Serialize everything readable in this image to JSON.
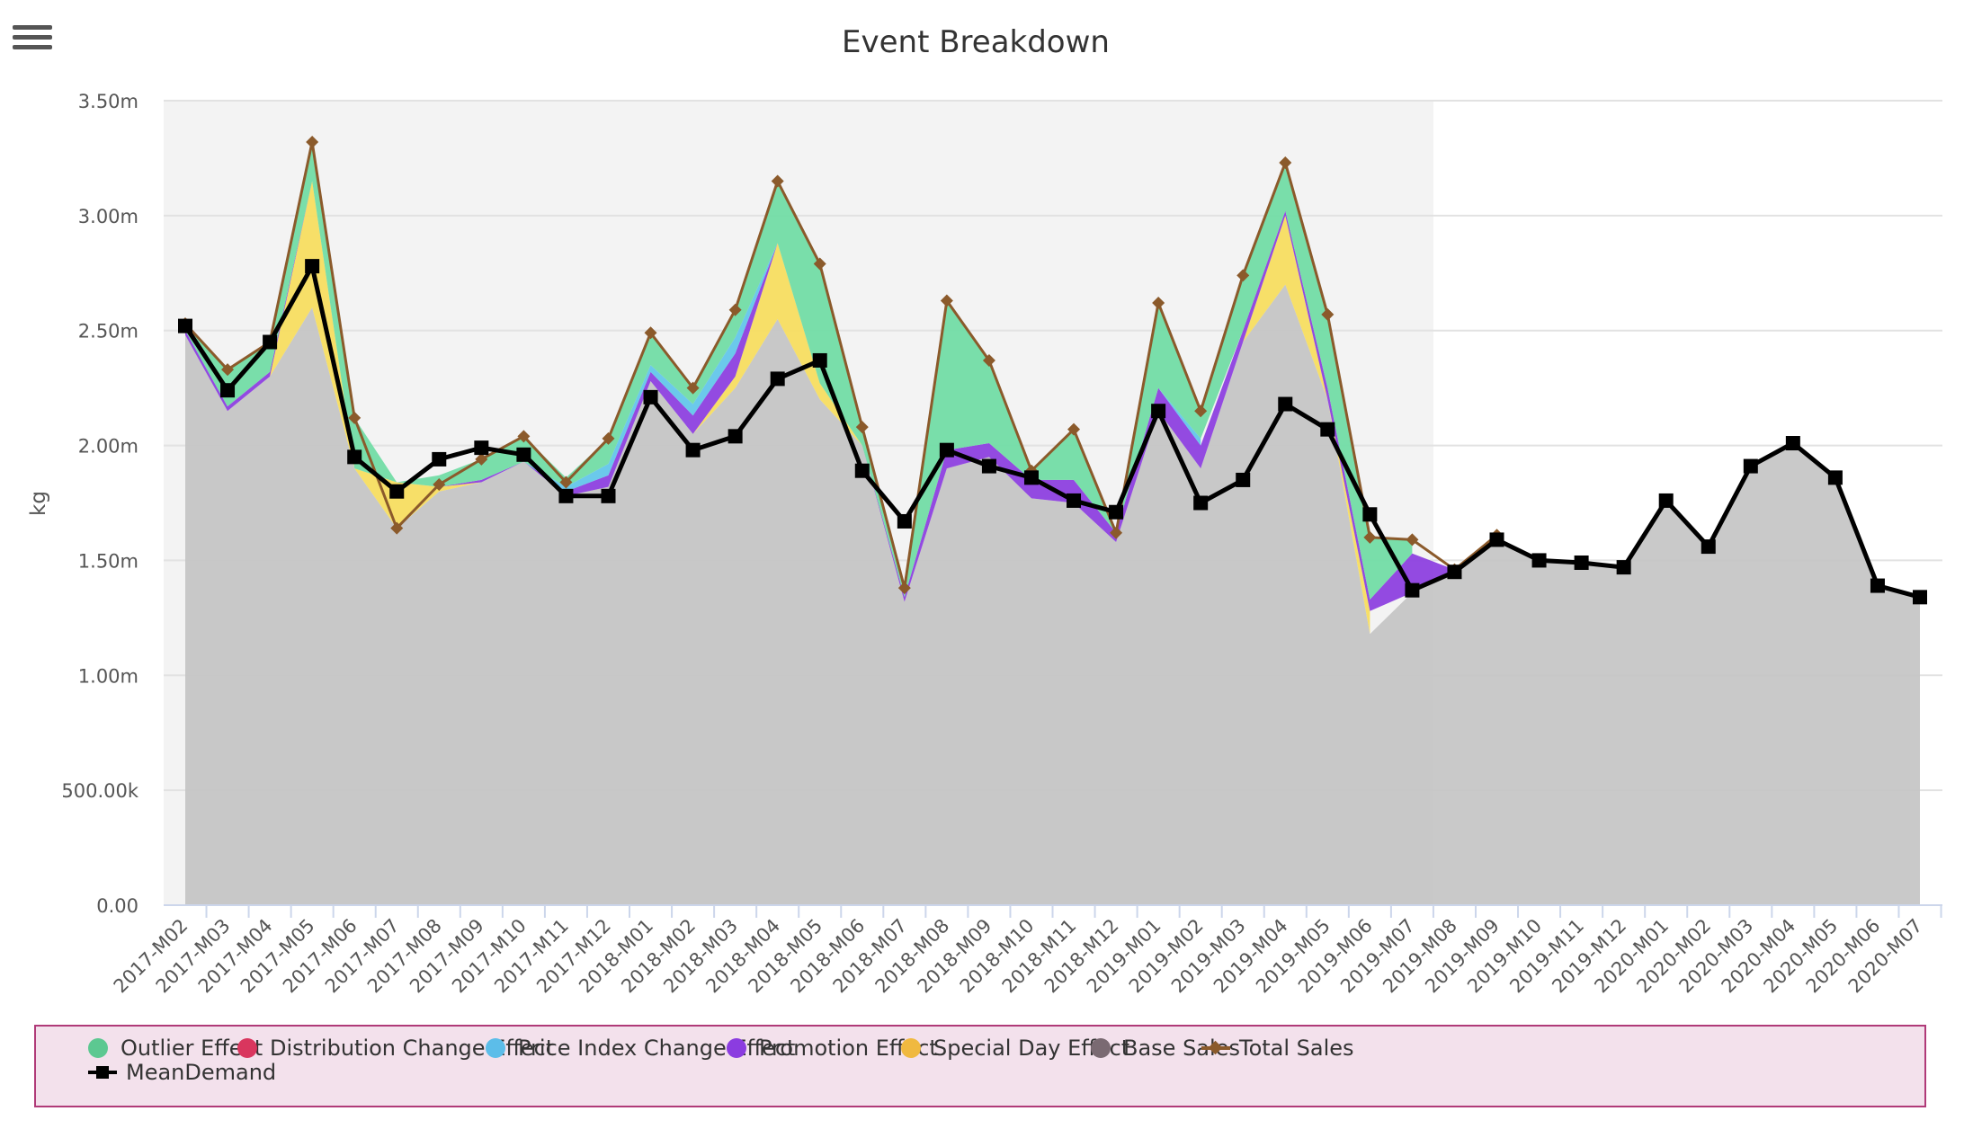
{
  "chart_data": {
    "type": "area",
    "title": "Event Breakdown",
    "ylabel": "kg",
    "ylim": [
      0,
      3500000
    ],
    "y_ticks": [
      "0.00",
      "500.00k",
      "1.00m",
      "1.50m",
      "2.00m",
      "2.50m",
      "3.00m",
      "3.50m"
    ],
    "grid": true,
    "shaded_history_end": "2019-M07",
    "categories": [
      "2017-M02",
      "2017-M03",
      "2017-M04",
      "2017-M05",
      "2017-M06",
      "2017-M07",
      "2017-M08",
      "2017-M09",
      "2017-M10",
      "2017-M11",
      "2017-M12",
      "2018-M01",
      "2018-M02",
      "2018-M03",
      "2018-M04",
      "2018-M05",
      "2018-M06",
      "2018-M07",
      "2018-M08",
      "2018-M09",
      "2018-M10",
      "2018-M11",
      "2018-M12",
      "2019-M01",
      "2019-M02",
      "2019-M03",
      "2019-M04",
      "2019-M05",
      "2019-M06",
      "2019-M07",
      "2019-M08",
      "2019-M09",
      "2019-M10",
      "2019-M11",
      "2019-M12",
      "2020-M01",
      "2020-M02",
      "2020-M03",
      "2020-M04",
      "2020-M05",
      "2020-M06",
      "2020-M07"
    ],
    "series": [
      {
        "name": "Base Sales",
        "kind": "area",
        "color": "#c4c4c4",
        "values": [
          2480000,
          2150000,
          2300000,
          2600000,
          1900000,
          1640000,
          1800000,
          1840000,
          1930000,
          1780000,
          1820000,
          2280000,
          2050000,
          2250000,
          2550000,
          2200000,
          2000000,
          1320000,
          1900000,
          1950000,
          1770000,
          1750000,
          1580000,
          2150000,
          1900000,
          2450000,
          2700000,
          2200000,
          1180000,
          1360000,
          1450000,
          1580000,
          1510000,
          1490000,
          1470000,
          1760000,
          1560000,
          1910000,
          2010000,
          1860000,
          1390000,
          1340000
        ]
      },
      {
        "name": "Special Day Effect",
        "kind": "area",
        "color": "#f7dd5c",
        "values": [
          0,
          0,
          0,
          550000,
          0,
          200000,
          20000,
          0,
          0,
          0,
          0,
          0,
          0,
          50000,
          330000,
          70000,
          0,
          0,
          0,
          0,
          0,
          0,
          0,
          0,
          0,
          0,
          300000,
          0,
          100000,
          0,
          0,
          0,
          0,
          0,
          0,
          0,
          0,
          0,
          0,
          0,
          0,
          0
        ]
      },
      {
        "name": "Promotion Effect",
        "kind": "area",
        "color": "#8b3ce0",
        "values": [
          20000,
          20000,
          20000,
          0,
          0,
          0,
          0,
          10000,
          0,
          20000,
          50000,
          40000,
          80000,
          100000,
          0,
          0,
          0,
          20000,
          80000,
          60000,
          80000,
          100000,
          40000,
          100000,
          100000,
          50000,
          20000,
          50000,
          50000,
          170000,
          10000,
          30000,
          0,
          0,
          0,
          0,
          0,
          0,
          0,
          0,
          0,
          0
        ]
      },
      {
        "name": "Price Index Change Effect",
        "kind": "area",
        "color": "#5fc5ea",
        "values": [
          0,
          0,
          0,
          0,
          0,
          0,
          0,
          0,
          0,
          20000,
          50000,
          30000,
          50000,
          70000,
          0,
          0,
          0,
          0,
          0,
          0,
          0,
          0,
          0,
          0,
          30000,
          0,
          0,
          0,
          0,
          0,
          0,
          0,
          0,
          0,
          0,
          0,
          0,
          0,
          0,
          0,
          0,
          0
        ]
      },
      {
        "name": "Distribution Change Effect",
        "kind": "area",
        "color": "#d9365e",
        "values": [
          0,
          0,
          0,
          0,
          0,
          0,
          0,
          0,
          0,
          0,
          0,
          0,
          0,
          0,
          0,
          0,
          0,
          0,
          0,
          0,
          0,
          0,
          0,
          0,
          0,
          0,
          0,
          0,
          0,
          0,
          0,
          0,
          0,
          0,
          0,
          0,
          0,
          0,
          0,
          0,
          0,
          0
        ]
      },
      {
        "name": "Outlier Effect",
        "kind": "area",
        "color": "#6fdca4",
        "values": [
          30000,
          160000,
          130000,
          170000,
          220000,
          0,
          50000,
          90000,
          110000,
          40000,
          110000,
          140000,
          70000,
          120000,
          270000,
          520000,
          80000,
          40000,
          650000,
          360000,
          40000,
          220000,
          0,
          370000,
          120000,
          240000,
          200000,
          320000,
          270000,
          60000,
          0,
          0,
          0,
          0,
          0,
          0,
          0,
          0,
          0,
          0,
          0,
          0
        ]
      },
      {
        "name": "Total Sales",
        "kind": "line",
        "color": "#8b5a2b",
        "values": [
          2530000,
          2330000,
          2450000,
          3320000,
          2120000,
          1640000,
          1830000,
          1940000,
          2040000,
          1840000,
          2030000,
          2490000,
          2250000,
          2590000,
          3150000,
          2790000,
          2080000,
          1380000,
          2630000,
          2370000,
          1890000,
          2070000,
          1620000,
          2620000,
          2150000,
          2740000,
          3230000,
          2570000,
          1600000,
          1590000,
          1460000,
          1610000,
          null,
          null,
          null,
          null,
          null,
          null,
          null,
          null,
          null,
          null
        ]
      },
      {
        "name": "MeanDemand",
        "kind": "line",
        "color": "#000000",
        "values": [
          2520000,
          2240000,
          2450000,
          2780000,
          1950000,
          1800000,
          1940000,
          1990000,
          1960000,
          1780000,
          1780000,
          2210000,
          1980000,
          2040000,
          2290000,
          2370000,
          1890000,
          1670000,
          1980000,
          1910000,
          1860000,
          1760000,
          1710000,
          2150000,
          1750000,
          1850000,
          2180000,
          2070000,
          1700000,
          1370000,
          1450000,
          1590000,
          1500000,
          1490000,
          1470000,
          1760000,
          1560000,
          1910000,
          2010000,
          1860000,
          1390000,
          1340000
        ]
      }
    ]
  },
  "legend": {
    "items": [
      {
        "label": "Outlier Effect",
        "color": "#5cc891",
        "type": "dot"
      },
      {
        "label": "Distribution Change Effect",
        "color": "#d9365e",
        "type": "dot"
      },
      {
        "label": "Price Index Change Effect",
        "color": "#5cbde9",
        "type": "dot"
      },
      {
        "label": "Promotion Effect",
        "color": "#8b3ce0",
        "type": "dot"
      },
      {
        "label": "Special Day Effect",
        "color": "#f0b940",
        "type": "dot"
      },
      {
        "label": "Base Sales",
        "color": "#7a6a72",
        "type": "dot"
      },
      {
        "label": "Total Sales",
        "color": "#8b5a2b",
        "type": "diamond-line"
      },
      {
        "label": "MeanDemand",
        "color": "#000000",
        "type": "square-line"
      }
    ]
  }
}
